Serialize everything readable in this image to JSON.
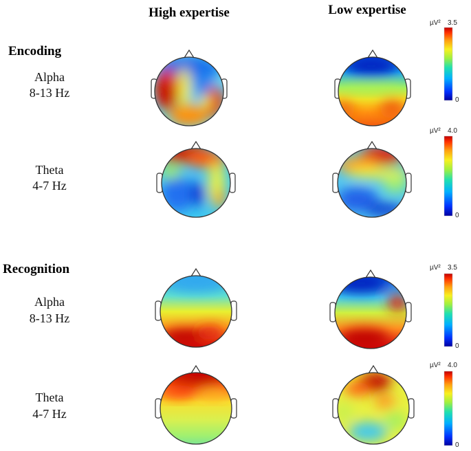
{
  "columns": {
    "high": "High expertise",
    "low": "Low expertise"
  },
  "sections": [
    {
      "title": "Encoding",
      "rows": [
        {
          "band": "Alpha",
          "freq": "8-13 Hz",
          "scale": {
            "unit": "µV²",
            "max_label": "3.5",
            "min_label": "0",
            "max": 3.5,
            "min": 0
          }
        },
        {
          "band": "Theta",
          "freq": "4-7 Hz",
          "scale": {
            "unit": "µV²",
            "max_label": "4.0",
            "min_label": "0",
            "max": 4.0,
            "min": 0
          }
        }
      ]
    },
    {
      "title": "Recognition",
      "rows": [
        {
          "band": "Alpha",
          "freq": "8-13 Hz",
          "scale": {
            "unit": "µV²",
            "max_label": "3.5",
            "min_label": "0",
            "max": 3.5,
            "min": 0
          }
        },
        {
          "band": "Theta",
          "freq": "4-7 Hz",
          "scale": {
            "unit": "µV²",
            "max_label": "4.0",
            "min_label": "0",
            "max": 4.0,
            "min": 0
          }
        }
      ]
    }
  ],
  "colors": {
    "jet_low": "#00007f",
    "jet_mid": "#7fff7f",
    "jet_high": "#7f0000"
  }
}
